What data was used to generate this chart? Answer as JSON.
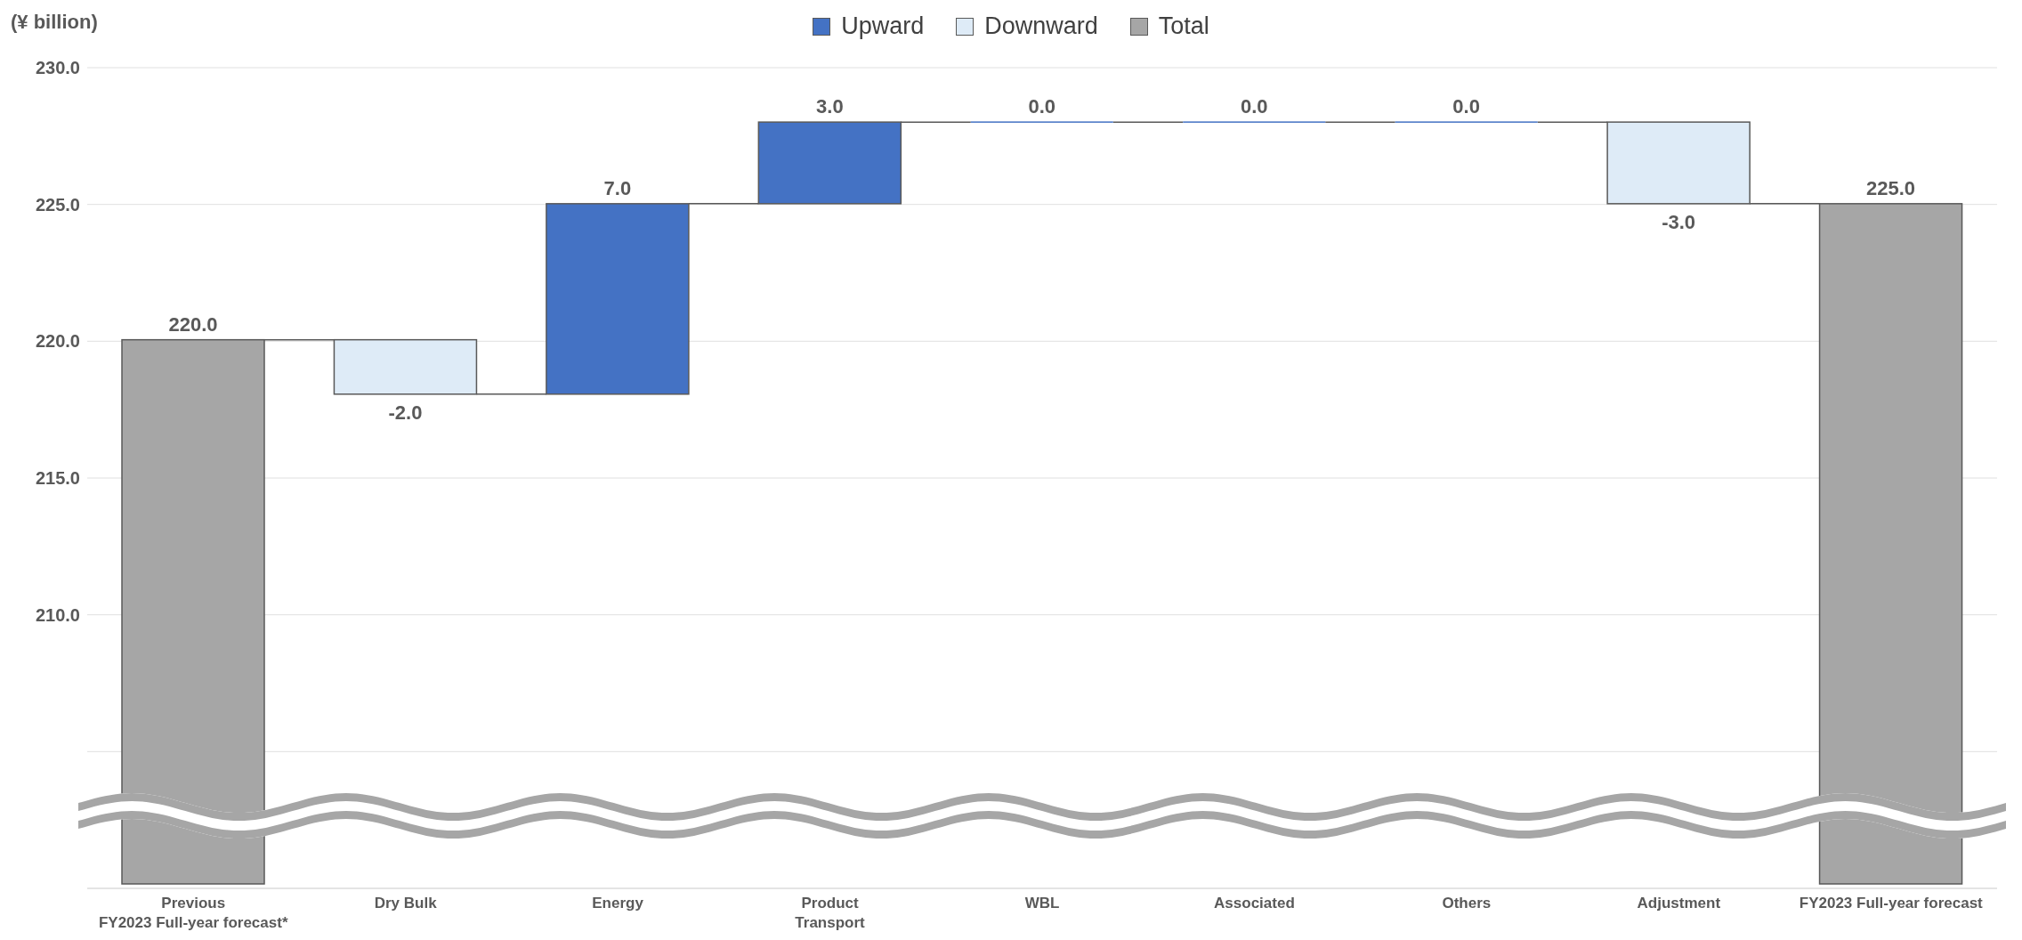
{
  "chart_data": {
    "type": "bar",
    "ylabel": "(¥ billion)",
    "categories": [
      "Previous\nFY2023 Full-year forecast*",
      "Dry Bulk",
      "Energy",
      "Product\nTransport",
      "WBL",
      "Associated",
      "Others",
      "Adjustment",
      "FY2023 Full-year forecast"
    ],
    "series": [
      {
        "name": "Upward",
        "color": "#4472c4",
        "base": [
          null,
          null,
          218,
          225,
          228,
          228,
          228,
          null,
          null
        ],
        "values": [
          null,
          null,
          7,
          3,
          0,
          0,
          0,
          null,
          null
        ],
        "value_labels": [
          null,
          null,
          "7.0",
          "3.0",
          "0.0",
          "0.0",
          "0.0",
          null,
          null
        ]
      },
      {
        "name": "Downward",
        "color": "#deebf7",
        "base": [
          null,
          220,
          null,
          null,
          null,
          null,
          null,
          228,
          null
        ],
        "values": [
          null,
          -2,
          null,
          null,
          null,
          null,
          null,
          -3,
          null
        ],
        "value_labels": [
          null,
          "-2.0",
          null,
          null,
          null,
          null,
          null,
          "-3.0",
          null
        ]
      },
      {
        "name": "Total",
        "color": "#a6a6a6",
        "values": [
          220,
          null,
          null,
          null,
          null,
          null,
          null,
          null,
          225
        ],
        "value_labels": [
          "220.0",
          null,
          null,
          null,
          null,
          null,
          null,
          null,
          "225.0"
        ]
      }
    ],
    "ylim": [
      200,
      230
    ],
    "yticks": [
      {
        "value": 200,
        "label": null
      },
      {
        "value": 205,
        "label": null
      },
      {
        "value": 210,
        "label": "210.0"
      },
      {
        "value": 215,
        "label": "215.0"
      },
      {
        "value": 220,
        "label": "220.0"
      },
      {
        "value": 225,
        "label": "225.0"
      },
      {
        "value": 230,
        "label": "230.0"
      }
    ],
    "grid": "y",
    "legend": "top"
  }
}
